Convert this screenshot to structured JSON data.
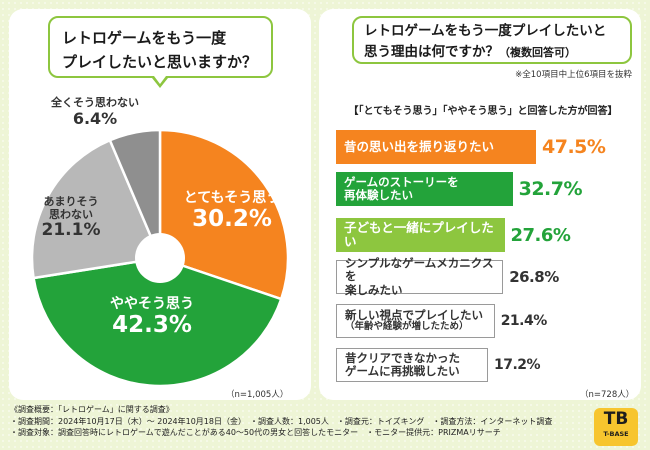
{
  "left": {
    "question_line1": "レトロゲームをもう一度",
    "question_line2": "プレイしたいと思いますか？",
    "n_label": "（n=1,005人）"
  },
  "right": {
    "question_line1": "レトロゲームをもう一度プレイしたいと",
    "question_line2": "思う理由は何ですか？",
    "question_suffix": "（複数回答可）",
    "note": "※全10項目中上位6項目を抜粋",
    "subheading": "【「とてもそう思う」「ややそう思う」と回答した方が回答】",
    "n_label": "（n=728人）"
  },
  "colors": {
    "orange": "#f5841f",
    "green": "#23a33a",
    "light_gray": "#b8b8b8",
    "dark_gray": "#8f8f8f",
    "accent_green": "#8dc63f",
    "text_white": "#ffffff"
  },
  "chart_data": [
    {
      "type": "pie",
      "title": "レトロゲームをもう一度プレイしたいと思いますか？",
      "slices": [
        {
          "label": "とてもそう思う",
          "value": 30.2,
          "display": "30.2%"
        },
        {
          "label": "ややそう思う",
          "value": 42.3,
          "display": "42.3%"
        },
        {
          "label": "あまりそう思わない",
          "label_line1": "あまりそう",
          "label_line2": "思わない",
          "value": 21.1,
          "display": "21.1%"
        },
        {
          "label": "全くそう思わない",
          "value": 6.4,
          "display": "6.4%"
        }
      ]
    },
    {
      "type": "bar",
      "title": "レトロゲームをもう一度プレイしたいと思う理由は何ですか？（複数回答可）",
      "categories": [
        {
          "line1": "昔の思い出を振り返りたい",
          "line2": ""
        },
        {
          "line1": "ゲームのストーリーを",
          "line2": "再体験したい"
        },
        {
          "line1": "子どもと一緒にプレイしたい",
          "line2": ""
        },
        {
          "line1": "シンプルなゲームメカニクスを",
          "line2": "楽しみたい"
        },
        {
          "line1": "新しい視点でプレイしたい",
          "line2": "（年齢や経験が増したため）"
        },
        {
          "line1": "昔クリアできなかった",
          "line2": "ゲームに再挑戦したい"
        }
      ],
      "values": [
        47.5,
        32.7,
        27.6,
        26.8,
        21.4,
        17.2
      ],
      "value_labels": [
        "47.5%",
        "32.7%",
        "27.6%",
        "26.8%",
        "21.4%",
        "17.2%"
      ],
      "unit": "%"
    }
  ],
  "footer": {
    "line1": "《調査概要：「レトロゲーム」に関する調査》",
    "line2": "・調査期間：2024年10月17日（木）～ 2024年10月18日（金）　・調査人数：1,005人　・調査元：トイズキング　・調査方法：インターネット調査",
    "line3": "・調査対象：調査回答時にレトロゲームで遊んだことがある40～50代の男女と回答したモニター　・モニター提供元：PRIZMAリサーチ"
  },
  "logo": {
    "mark": "TB",
    "text": "T-BASE"
  }
}
